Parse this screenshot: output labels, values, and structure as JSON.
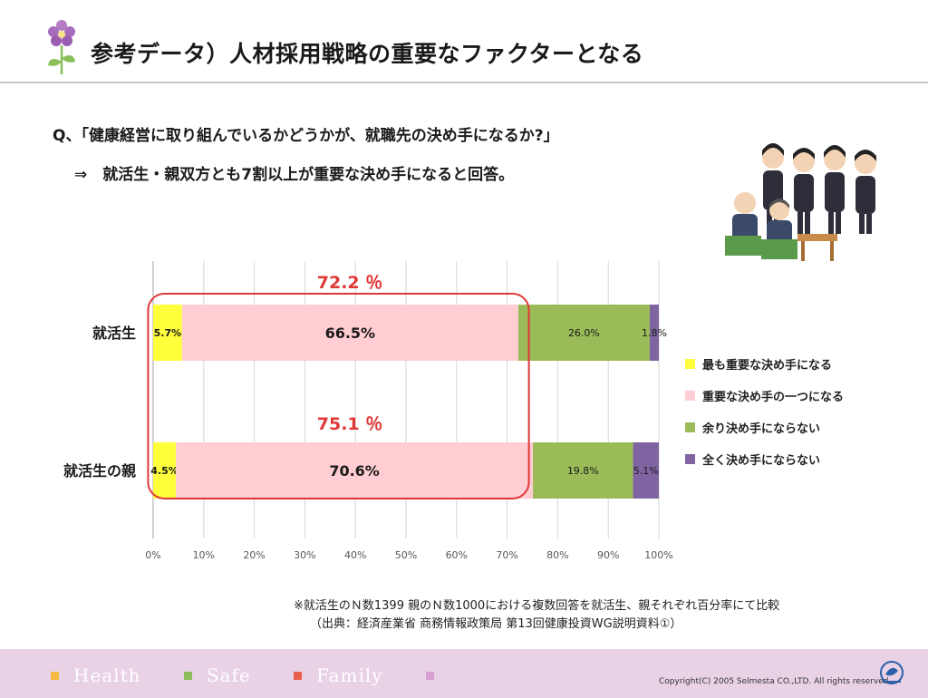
{
  "header": {
    "title": "参考データ）人材採用戦略の重要なファクターとなる"
  },
  "question": "Q、「健康経営に取り組んでいるかどうかが、就職先の決め手になるか?」",
  "answer": "⇒　就活生・親双方とも7割以上が重要な決め手になると回答。",
  "illustration_icon": "job-interview-illustration",
  "chart_data": {
    "type": "bar",
    "orientation": "horizontal",
    "stacked": true,
    "categories": [
      "就活生",
      "就活生の親"
    ],
    "series": [
      {
        "name": "最も重要な決め手になる",
        "color": "#ffff3b",
        "values": [
          5.7,
          4.5
        ],
        "labels": [
          "5.7%",
          "4.5%"
        ]
      },
      {
        "name": "重要な決め手の一つになる",
        "color": "#ffcdd2",
        "values": [
          66.5,
          70.6
        ],
        "labels": [
          "66.5%",
          "70.6%"
        ]
      },
      {
        "name": "余り決め手にならない",
        "color": "#9bbb59",
        "values": [
          26.0,
          19.8
        ],
        "labels": [
          "26.0%",
          "19.8%"
        ]
      },
      {
        "name": "全く決め手にならない",
        "color": "#8064a2",
        "values": [
          1.8,
          5.1
        ],
        "labels": [
          "1.8%",
          "5.1%"
        ]
      }
    ],
    "xlim": [
      0,
      100
    ],
    "x_ticks": [
      "0%",
      "10%",
      "20%",
      "30%",
      "40%",
      "50%",
      "60%",
      "70%",
      "80%",
      "90%",
      "100%"
    ],
    "callouts": [
      "72.2 ％",
      "75.1 ％"
    ],
    "callout_color": "#e03838",
    "grid": true,
    "legend_position": "right"
  },
  "note": {
    "line1": "※就活生のＮ数1399 親のＮ数1000における複数回答を就活生、親それぞれ百分率にて比較",
    "line2": "（出典：経済産業省 商務情報政策局 第13回健康投資WG説明資料①）"
  },
  "footer": {
    "tagline": [
      "Health",
      "Safe",
      "Family"
    ],
    "tagline_square_colors": [
      "#f5b841",
      "#8fbc5a",
      "#e8604c",
      "#d8a0d0"
    ],
    "copyright": "Copyright(C) 2005 Selmesta CO.,LTD.  All rights reserved.",
    "logo_icon": "company-logo-icon"
  }
}
